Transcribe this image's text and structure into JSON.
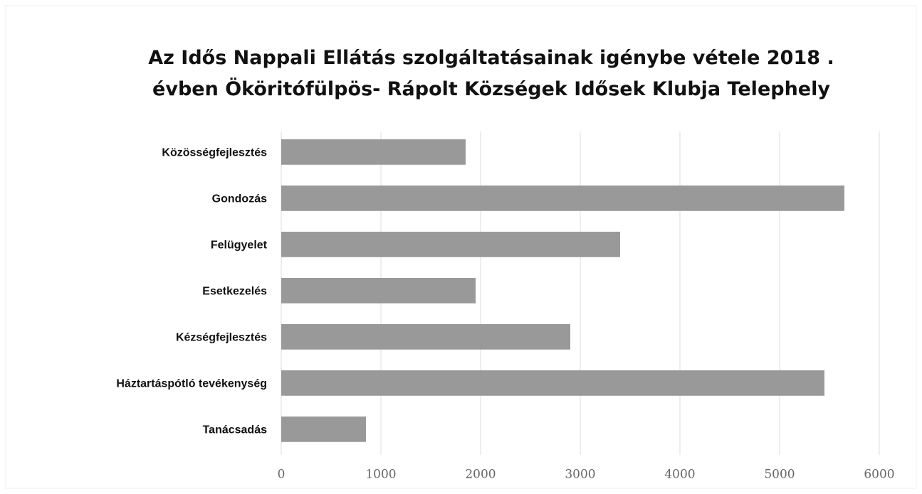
{
  "chart_data": {
    "type": "bar",
    "orientation": "horizontal",
    "title": "Az Idős Nappali Ellátás szolgáltatásainak igénybe vétele 2018 . évben Ököritófülpös- Rápolt Községek Idősek Klubja Telephely",
    "categories": [
      "Közösségfejlesztés",
      "Gondozás",
      "Felügyelet",
      "Esetkezelés",
      "Kézségfejlesztés",
      "Háztartáspótló tevékenység",
      "Tanácsadás"
    ],
    "values": [
      1850,
      5650,
      3400,
      1950,
      2900,
      5450,
      850
    ],
    "color": "#999999",
    "xlim": [
      0,
      6000
    ],
    "xticks": [
      0,
      1000,
      2000,
      3000,
      4000,
      5000,
      6000
    ],
    "grid": true
  }
}
